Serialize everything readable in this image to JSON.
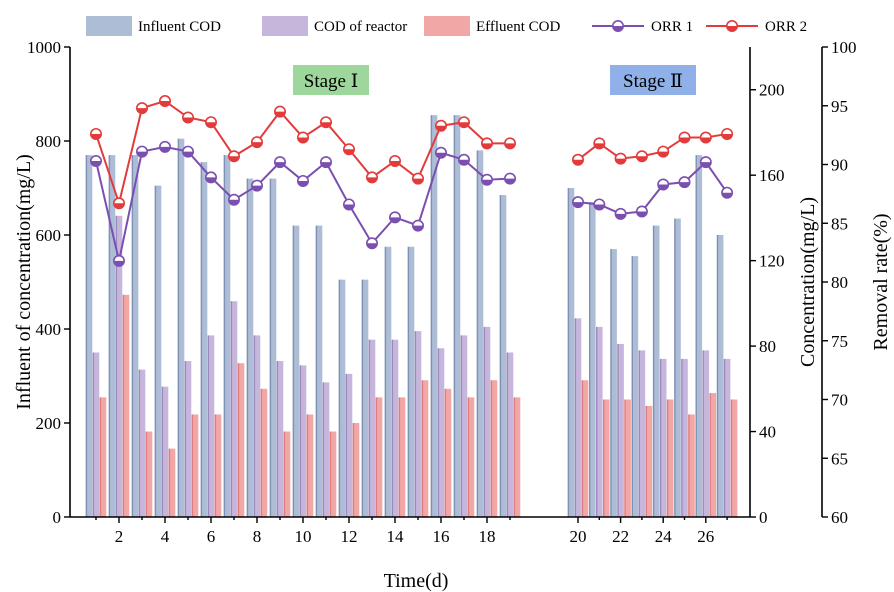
{
  "colors": {
    "influent_fill": "#aebdd6",
    "influent_edge": "#6f83a8",
    "reactor_fill": "#c7b6dc",
    "reactor_edge": "#8f78b3",
    "effluent_fill": "#f2a7a7",
    "effluent_edge": "#d86f6f",
    "orr1": "#7b4fb0",
    "orr2": "#e33b3b",
    "stage1_bg": "#9ed79b",
    "stage2_bg": "#8fb0e8"
  },
  "chart_data": {
    "type": "bar",
    "xlabel": "Time(d)",
    "ylabel_left": "Influent of concentration(mg/L)",
    "ylabel_right1": "Concentration(mg/L)",
    "ylabel_right2": "Removal rate(%)",
    "ylim_left": [
      0,
      1000
    ],
    "ylim_right1": [
      0,
      220
    ],
    "ylim_right2": [
      60,
      100
    ],
    "x_ticks": [
      2,
      4,
      6,
      8,
      10,
      12,
      14,
      16,
      18,
      20,
      22,
      24,
      26
    ],
    "left_ticks": [
      0,
      200,
      400,
      600,
      800,
      1000
    ],
    "right1_ticks": [
      0,
      40,
      80,
      120,
      160,
      200
    ],
    "right2_ticks": [
      60,
      65,
      70,
      75,
      80,
      85,
      90,
      95,
      100
    ],
    "stages": [
      "Stage Ⅰ",
      "Stage Ⅱ"
    ],
    "legend": [
      "Influent COD",
      "COD of reactor",
      "Effluent COD",
      "ORR 1",
      "ORR 2"
    ],
    "days": [
      1,
      2,
      3,
      4,
      5,
      6,
      7,
      8,
      9,
      10,
      11,
      12,
      13,
      14,
      15,
      16,
      17,
      18,
      19,
      20,
      21,
      22,
      23,
      24,
      25,
      26,
      27
    ],
    "series": [
      {
        "name": "Influent COD",
        "axis": "left",
        "values": [
          770,
          770,
          770,
          705,
          805,
          755,
          770,
          720,
          720,
          620,
          620,
          505,
          505,
          575,
          575,
          855,
          855,
          780,
          685,
          700,
          670,
          570,
          555,
          620,
          635,
          770,
          600
        ]
      },
      {
        "name": "COD of reactor",
        "axis": "right1",
        "values": [
          77,
          141,
          69,
          61,
          73,
          85,
          101,
          85,
          73,
          71,
          63,
          67,
          83,
          83,
          87,
          79,
          85,
          89,
          77,
          93,
          89,
          81,
          78,
          74,
          74,
          78,
          74
        ]
      },
      {
        "name": "Effluent COD",
        "axis": "right1",
        "values": [
          56,
          104,
          40,
          32,
          48,
          48,
          72,
          60,
          40,
          48,
          40,
          44,
          56,
          56,
          64,
          60,
          56,
          64,
          56,
          64,
          55,
          55,
          52,
          55,
          48,
          58,
          55
        ]
      },
      {
        "name": "ORR 1",
        "axis": "right2",
        "values": [
          90.3,
          81.8,
          91.1,
          91.5,
          91.1,
          88.9,
          87.0,
          88.2,
          90.2,
          88.6,
          90.2,
          86.6,
          83.3,
          85.5,
          84.8,
          91.0,
          90.4,
          88.7,
          88.8,
          86.8,
          86.6,
          85.8,
          86.0,
          88.3,
          88.5,
          90.2,
          87.6
        ]
      },
      {
        "name": "ORR 2",
        "axis": "right2",
        "values": [
          92.6,
          86.7,
          94.8,
          95.4,
          94.0,
          93.6,
          90.7,
          91.9,
          94.5,
          92.3,
          93.6,
          91.3,
          88.9,
          90.3,
          88.8,
          93.3,
          93.6,
          91.8,
          91.8,
          90.4,
          91.8,
          90.5,
          90.7,
          91.1,
          92.3,
          92.3,
          92.6
        ]
      }
    ]
  }
}
